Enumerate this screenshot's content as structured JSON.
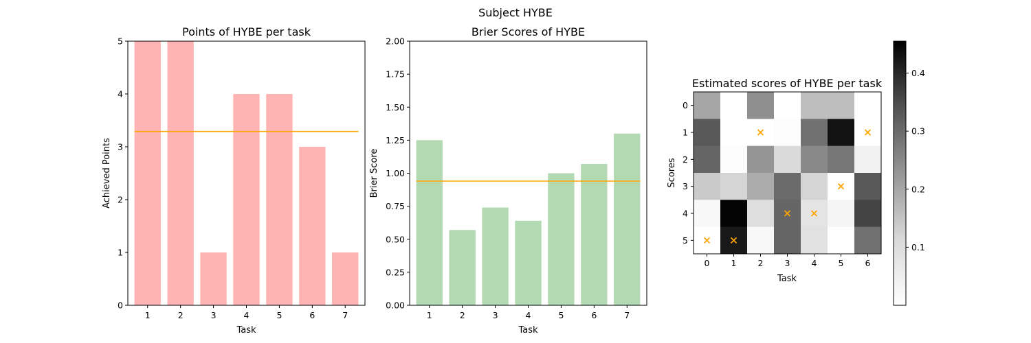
{
  "suptitle": "Subject HYBE",
  "colors": {
    "points_bar": "#ffb3b3",
    "brier_bar": "#b3d9b3",
    "mean_line": "#ffa500",
    "marker": "#ffa500"
  },
  "chart_data": [
    {
      "type": "bar",
      "title": "Points of HYBE per task",
      "xlabel": "Task",
      "ylabel": "Achieved Points",
      "categories": [
        "1",
        "2",
        "3",
        "4",
        "5",
        "6",
        "7"
      ],
      "values": [
        5,
        5,
        1,
        4,
        4,
        3,
        1
      ],
      "mean_line": 3.29,
      "ylim": [
        0,
        5
      ],
      "yticks": [
        "0",
        "1",
        "2",
        "3",
        "4",
        "5"
      ]
    },
    {
      "type": "bar",
      "title": "Brier Scores of HYBE",
      "xlabel": "Task",
      "ylabel": "Brier Score",
      "categories": [
        "1",
        "2",
        "3",
        "4",
        "5",
        "6",
        "7"
      ],
      "values": [
        1.25,
        0.57,
        0.74,
        0.64,
        1.0,
        1.07,
        1.3
      ],
      "mean_line": 0.94,
      "ylim": [
        0,
        2
      ],
      "yticks": [
        "0.00",
        "0.25",
        "0.50",
        "0.75",
        "1.00",
        "1.25",
        "1.50",
        "1.75",
        "2.00"
      ]
    },
    {
      "type": "heatmap",
      "title": "Estimated scores of HYBE per task",
      "xlabel": "Task",
      "ylabel": "Scores",
      "x": [
        "0",
        "1",
        "2",
        "3",
        "4",
        "5",
        "6"
      ],
      "y": [
        "0",
        "1",
        "2",
        "3",
        "4",
        "5"
      ],
      "values": [
        [
          0.2,
          0.0,
          0.24,
          0.0,
          0.16,
          0.16,
          0.0
        ],
        [
          0.33,
          0.0,
          0.0,
          0.01,
          0.29,
          0.43,
          0.0
        ],
        [
          0.31,
          0.01,
          0.23,
          0.11,
          0.25,
          0.28,
          0.04
        ],
        [
          0.14,
          0.12,
          0.19,
          0.3,
          0.12,
          0.0,
          0.33
        ],
        [
          0.02,
          0.45,
          0.1,
          0.31,
          0.08,
          0.03,
          0.36
        ],
        [
          0.0,
          0.42,
          0.02,
          0.31,
          0.09,
          0.0,
          0.29
        ]
      ],
      "markers": [
        {
          "task": 2,
          "score": 1
        },
        {
          "task": 6,
          "score": 1
        },
        {
          "task": 5,
          "score": 3
        },
        {
          "task": 3,
          "score": 4
        },
        {
          "task": 4,
          "score": 4
        },
        {
          "task": 0,
          "score": 5
        },
        {
          "task": 1,
          "score": 5
        }
      ],
      "colormap": "Greys",
      "colorbar_range": [
        0.0,
        0.455
      ],
      "colorbar_ticks": [
        0.1,
        0.2,
        0.3,
        0.4
      ],
      "colorbar_tick_labels": [
        "0.1",
        "0.2",
        "0.3",
        "0.4"
      ]
    }
  ]
}
